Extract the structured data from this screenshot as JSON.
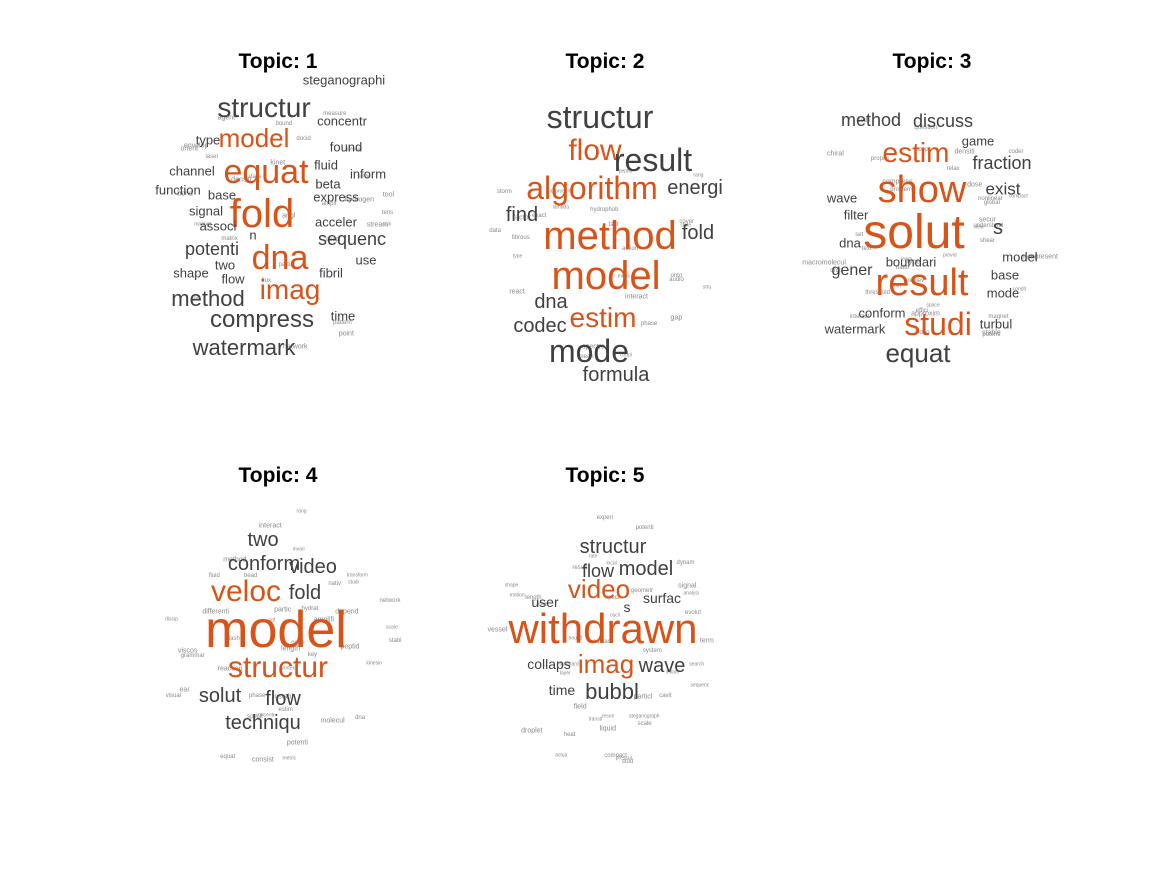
{
  "palette": {
    "highlight": "#d95319",
    "normal": "#404040",
    "small": "#8a8a8a"
  },
  "chart_data": [
    {
      "type": "wordcloud",
      "title": "Topic: 1",
      "words": [
        {
          "text": "fold",
          "size": 40,
          "hl": true
        },
        {
          "text": "equat",
          "size": 34,
          "hl": true
        },
        {
          "text": "dna",
          "size": 34,
          "hl": true
        },
        {
          "text": "imag",
          "size": 28,
          "hl": true
        },
        {
          "text": "model",
          "size": 26,
          "hl": true
        },
        {
          "text": "structur",
          "size": 28,
          "hl": false
        },
        {
          "text": "compress",
          "size": 24,
          "hl": false
        },
        {
          "text": "watermark",
          "size": 22,
          "hl": false
        },
        {
          "text": "method",
          "size": 22,
          "hl": false
        },
        {
          "text": "potenti",
          "size": 18,
          "hl": false
        },
        {
          "text": "sequenc",
          "size": 18,
          "hl": false
        },
        {
          "text": "steganographi",
          "size": 13,
          "hl": false
        },
        {
          "text": "concentr",
          "size": 13,
          "hl": false
        },
        {
          "text": "found",
          "size": 13,
          "hl": false
        },
        {
          "text": "fluid",
          "size": 13,
          "hl": false
        },
        {
          "text": "channel",
          "size": 13,
          "hl": false
        },
        {
          "text": "function",
          "size": 13,
          "hl": false
        },
        {
          "text": "type",
          "size": 13,
          "hl": false
        },
        {
          "text": "base",
          "size": 13,
          "hl": false
        },
        {
          "text": "beta",
          "size": 13,
          "hl": false
        },
        {
          "text": "inform",
          "size": 13,
          "hl": false
        },
        {
          "text": "express",
          "size": 13,
          "hl": false
        },
        {
          "text": "signal",
          "size": 13,
          "hl": false
        },
        {
          "text": "associ",
          "size": 13,
          "hl": false
        },
        {
          "text": "acceler",
          "size": 13,
          "hl": false
        },
        {
          "text": "fibril",
          "size": 13,
          "hl": false
        },
        {
          "text": "use",
          "size": 13,
          "hl": false
        },
        {
          "text": "shape",
          "size": 13,
          "hl": false
        },
        {
          "text": "two",
          "size": 13,
          "hl": false
        },
        {
          "text": "flow",
          "size": 13,
          "hl": false
        },
        {
          "text": "time",
          "size": 13,
          "hl": false
        },
        {
          "text": "n",
          "size": 13,
          "hl": false
        }
      ]
    },
    {
      "type": "wordcloud",
      "title": "Topic: 2",
      "words": [
        {
          "text": "method",
          "size": 40,
          "hl": true
        },
        {
          "text": "model",
          "size": 40,
          "hl": true
        },
        {
          "text": "algorithm",
          "size": 32,
          "hl": true
        },
        {
          "text": "flow",
          "size": 30,
          "hl": true
        },
        {
          "text": "estim",
          "size": 28,
          "hl": true
        },
        {
          "text": "structur",
          "size": 32,
          "hl": false
        },
        {
          "text": "result",
          "size": 32,
          "hl": false
        },
        {
          "text": "mode",
          "size": 32,
          "hl": false
        },
        {
          "text": "energi",
          "size": 20,
          "hl": false
        },
        {
          "text": "fold",
          "size": 20,
          "hl": false
        },
        {
          "text": "find",
          "size": 20,
          "hl": false
        },
        {
          "text": "dna",
          "size": 20,
          "hl": false
        },
        {
          "text": "codec",
          "size": 20,
          "hl": false
        },
        {
          "text": "formula",
          "size": 20,
          "hl": false
        }
      ]
    },
    {
      "type": "wordcloud",
      "title": "Topic: 3",
      "words": [
        {
          "text": "solut",
          "size": 48,
          "hl": true
        },
        {
          "text": "show",
          "size": 38,
          "hl": true
        },
        {
          "text": "result",
          "size": 38,
          "hl": true
        },
        {
          "text": "studi",
          "size": 32,
          "hl": true
        },
        {
          "text": "estim",
          "size": 28,
          "hl": true
        },
        {
          "text": "equat",
          "size": 26,
          "hl": false
        },
        {
          "text": "method",
          "size": 18,
          "hl": false
        },
        {
          "text": "discuss",
          "size": 18,
          "hl": false
        },
        {
          "text": "fraction",
          "size": 18,
          "hl": false
        },
        {
          "text": "exist",
          "size": 17,
          "hl": false
        },
        {
          "text": "s",
          "size": 20,
          "hl": false
        },
        {
          "text": "game",
          "size": 13,
          "hl": false
        },
        {
          "text": "wave",
          "size": 13,
          "hl": false
        },
        {
          "text": "filter",
          "size": 13,
          "hl": false
        },
        {
          "text": "dna",
          "size": 13,
          "hl": false
        },
        {
          "text": "gener",
          "size": 16,
          "hl": false
        },
        {
          "text": "boundari",
          "size": 13,
          "hl": false
        },
        {
          "text": "model",
          "size": 13,
          "hl": false
        },
        {
          "text": "base",
          "size": 13,
          "hl": false
        },
        {
          "text": "mode",
          "size": 13,
          "hl": false
        },
        {
          "text": "conform",
          "size": 13,
          "hl": false
        },
        {
          "text": "watermark",
          "size": 13,
          "hl": false
        },
        {
          "text": "turbul",
          "size": 13,
          "hl": false
        }
      ]
    },
    {
      "type": "wordcloud",
      "title": "Topic: 4",
      "words": [
        {
          "text": "model",
          "size": 52,
          "hl": true
        },
        {
          "text": "veloc",
          "size": 30,
          "hl": true
        },
        {
          "text": "structur",
          "size": 30,
          "hl": true
        },
        {
          "text": "conform",
          "size": 20,
          "hl": false
        },
        {
          "text": "two",
          "size": 20,
          "hl": false
        },
        {
          "text": "video",
          "size": 20,
          "hl": false
        },
        {
          "text": "fold",
          "size": 20,
          "hl": false
        },
        {
          "text": "solut",
          "size": 20,
          "hl": false
        },
        {
          "text": "flow",
          "size": 20,
          "hl": false
        },
        {
          "text": "techniqu",
          "size": 20,
          "hl": false
        }
      ]
    },
    {
      "type": "wordcloud",
      "title": "Topic: 5",
      "words": [
        {
          "text": "withdrawn",
          "size": 42,
          "hl": true
        },
        {
          "text": "video",
          "size": 26,
          "hl": true
        },
        {
          "text": "imag",
          "size": 26,
          "hl": true
        },
        {
          "text": "structur",
          "size": 20,
          "hl": false
        },
        {
          "text": "flow",
          "size": 18,
          "hl": false
        },
        {
          "text": "model",
          "size": 20,
          "hl": false
        },
        {
          "text": "surfac",
          "size": 14,
          "hl": false
        },
        {
          "text": "user",
          "size": 14,
          "hl": false
        },
        {
          "text": "s",
          "size": 14,
          "hl": false
        },
        {
          "text": "wave",
          "size": 20,
          "hl": false
        },
        {
          "text": "collaps",
          "size": 14,
          "hl": false
        },
        {
          "text": "time",
          "size": 14,
          "hl": false
        },
        {
          "text": "bubbl",
          "size": 22,
          "hl": false
        }
      ]
    }
  ],
  "minor_words": [
    [
      "stream",
      "tool",
      "envelop",
      "point",
      "docid",
      "pressur",
      "tens",
      "surfac",
      "spin",
      "magnet",
      "measure",
      "laser",
      "network",
      "kinet",
      "cell",
      "ampli",
      "bond",
      "partial",
      "data",
      "agent",
      "bound",
      "pattern",
      "matrix",
      "hydrogen",
      "orient",
      "coupl",
      "angl",
      "densiti",
      "flux"
    ],
    [
      "state",
      "type",
      "phase",
      "peptid",
      "react",
      "spectra",
      "interact",
      "storm",
      "stru",
      "rang",
      "gap",
      "coupl",
      "approach",
      "meas",
      "data",
      "cover",
      "fast",
      "lambda",
      "exact",
      "hydrophob",
      "factor",
      "audio",
      "mean",
      "action",
      "fibrous",
      "onto"
    ],
    [
      "understand",
      "nonlinear",
      "question",
      "set",
      "view",
      "code",
      "interact",
      "potenti",
      "provid",
      "learn",
      "drop",
      "densiti",
      "compact",
      "problem",
      "chiral",
      "depend",
      "text",
      "dose",
      "threshold",
      "relax",
      "approxim",
      "shear",
      "condit",
      "video",
      "natur",
      "magnet",
      "propos",
      "global",
      "coupl",
      "stable",
      "effici",
      "space",
      "retriev",
      "secur",
      "macromolecul",
      "type",
      "compress",
      "coder",
      "rmm",
      "represent"
    ],
    [
      "stabl",
      "visual",
      "specif",
      "molecul",
      "fluid",
      "gene",
      "differenti",
      "partic",
      "instabl",
      "invari",
      "interact",
      "ear",
      "equat",
      "key",
      "sqf",
      "length",
      "transform",
      "estim",
      "potenti",
      "nativ",
      "peptid",
      "scale",
      "studi",
      "reaction",
      "metric",
      "vortex",
      "flash",
      "dna",
      "depend",
      "dissip",
      "hydrat",
      "kinesin",
      "consist",
      "concentr",
      "phase",
      "rang",
      "grammar",
      "viscos",
      "network",
      "bead",
      "method",
      "amplifi"
    ],
    [
      "term",
      "signal",
      "geometr",
      "potenti",
      "stud",
      "standard",
      "experi",
      "layer",
      "field",
      "pressur",
      "search",
      "system",
      "result",
      "bound",
      "spectr",
      "particl",
      "contact",
      "drive",
      "sequenc",
      "evolut",
      "local",
      "analysi",
      "rate",
      "shape",
      "cavit",
      "reson",
      "droplet",
      "transit",
      "steganograph",
      "dynam",
      "vessel",
      "oscil",
      "liquid",
      "length",
      "scale",
      "compact",
      "actua",
      "inflam",
      "motion",
      "heat"
    ]
  ]
}
